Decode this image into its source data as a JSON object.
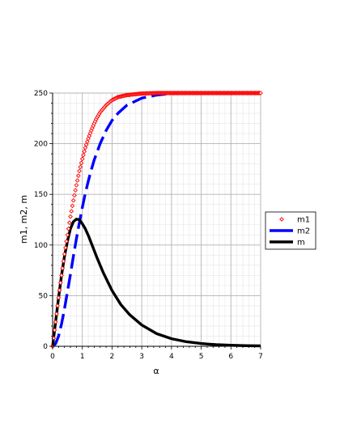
{
  "chart_data": {
    "type": "line",
    "xlabel": "α",
    "ylabel": "m1, m2, m",
    "xlim": [
      0,
      7
    ],
    "ylim": [
      0,
      250
    ],
    "x_ticks": [
      0,
      1,
      2,
      3,
      4,
      5,
      6,
      7
    ],
    "y_ticks": [
      0,
      50,
      100,
      150,
      200,
      250
    ],
    "grid": true,
    "legend_position": "right",
    "series": [
      {
        "name": "m1",
        "style": "diamond-markers",
        "color": "#ff0000",
        "x": [
          0,
          0.1,
          0.2,
          0.3,
          0.4,
          0.5,
          0.6,
          0.7,
          0.8,
          0.9,
          1.0,
          1.1,
          1.2,
          1.3,
          1.4,
          1.5,
          1.6,
          1.8,
          2.0,
          2.2,
          2.5,
          3.0,
          3.5,
          4.0,
          5.0,
          6.0,
          7.0
        ],
        "values": [
          0,
          24,
          48,
          70,
          91,
          110,
          128,
          144,
          159,
          173,
          185,
          196,
          205,
          213,
          220,
          226,
          231,
          238,
          243,
          246,
          248,
          249.5,
          250,
          250,
          250,
          250,
          250
        ]
      },
      {
        "name": "m2",
        "style": "long-dash",
        "color": "#0000ff",
        "x": [
          0,
          0.1,
          0.2,
          0.3,
          0.4,
          0.5,
          0.6,
          0.7,
          0.8,
          0.9,
          1.0,
          1.1,
          1.2,
          1.3,
          1.4,
          1.5,
          1.6,
          1.8,
          2.0,
          2.2,
          2.5,
          3.0,
          3.5,
          4.0,
          5.0,
          6.0,
          7.0
        ],
        "values": [
          0,
          2.5,
          10,
          22,
          37,
          54,
          71,
          89,
          106,
          122,
          137,
          151,
          163,
          174,
          184,
          192,
          200,
          213,
          223,
          230,
          238,
          245,
          248,
          249.5,
          250,
          250,
          250
        ]
      },
      {
        "name": "m",
        "style": "solid",
        "color": "#000000",
        "x": [
          0,
          0.1,
          0.2,
          0.3,
          0.4,
          0.5,
          0.6,
          0.7,
          0.8,
          0.9,
          1.0,
          1.1,
          1.2,
          1.3,
          1.4,
          1.5,
          1.7,
          2.0,
          2.3,
          2.6,
          3.0,
          3.5,
          4.0,
          4.5,
          5.0,
          5.5,
          6.0,
          6.5,
          7.0
        ],
        "values": [
          0,
          24,
          48,
          70,
          89,
          104,
          116,
          123,
          125.5,
          125,
          121,
          116,
          109.5,
          102,
          94.5,
          87,
          73,
          55,
          41,
          31,
          21,
          12.5,
          7.5,
          4.5,
          2.7,
          1.6,
          1,
          0.6,
          0.4
        ]
      }
    ]
  }
}
